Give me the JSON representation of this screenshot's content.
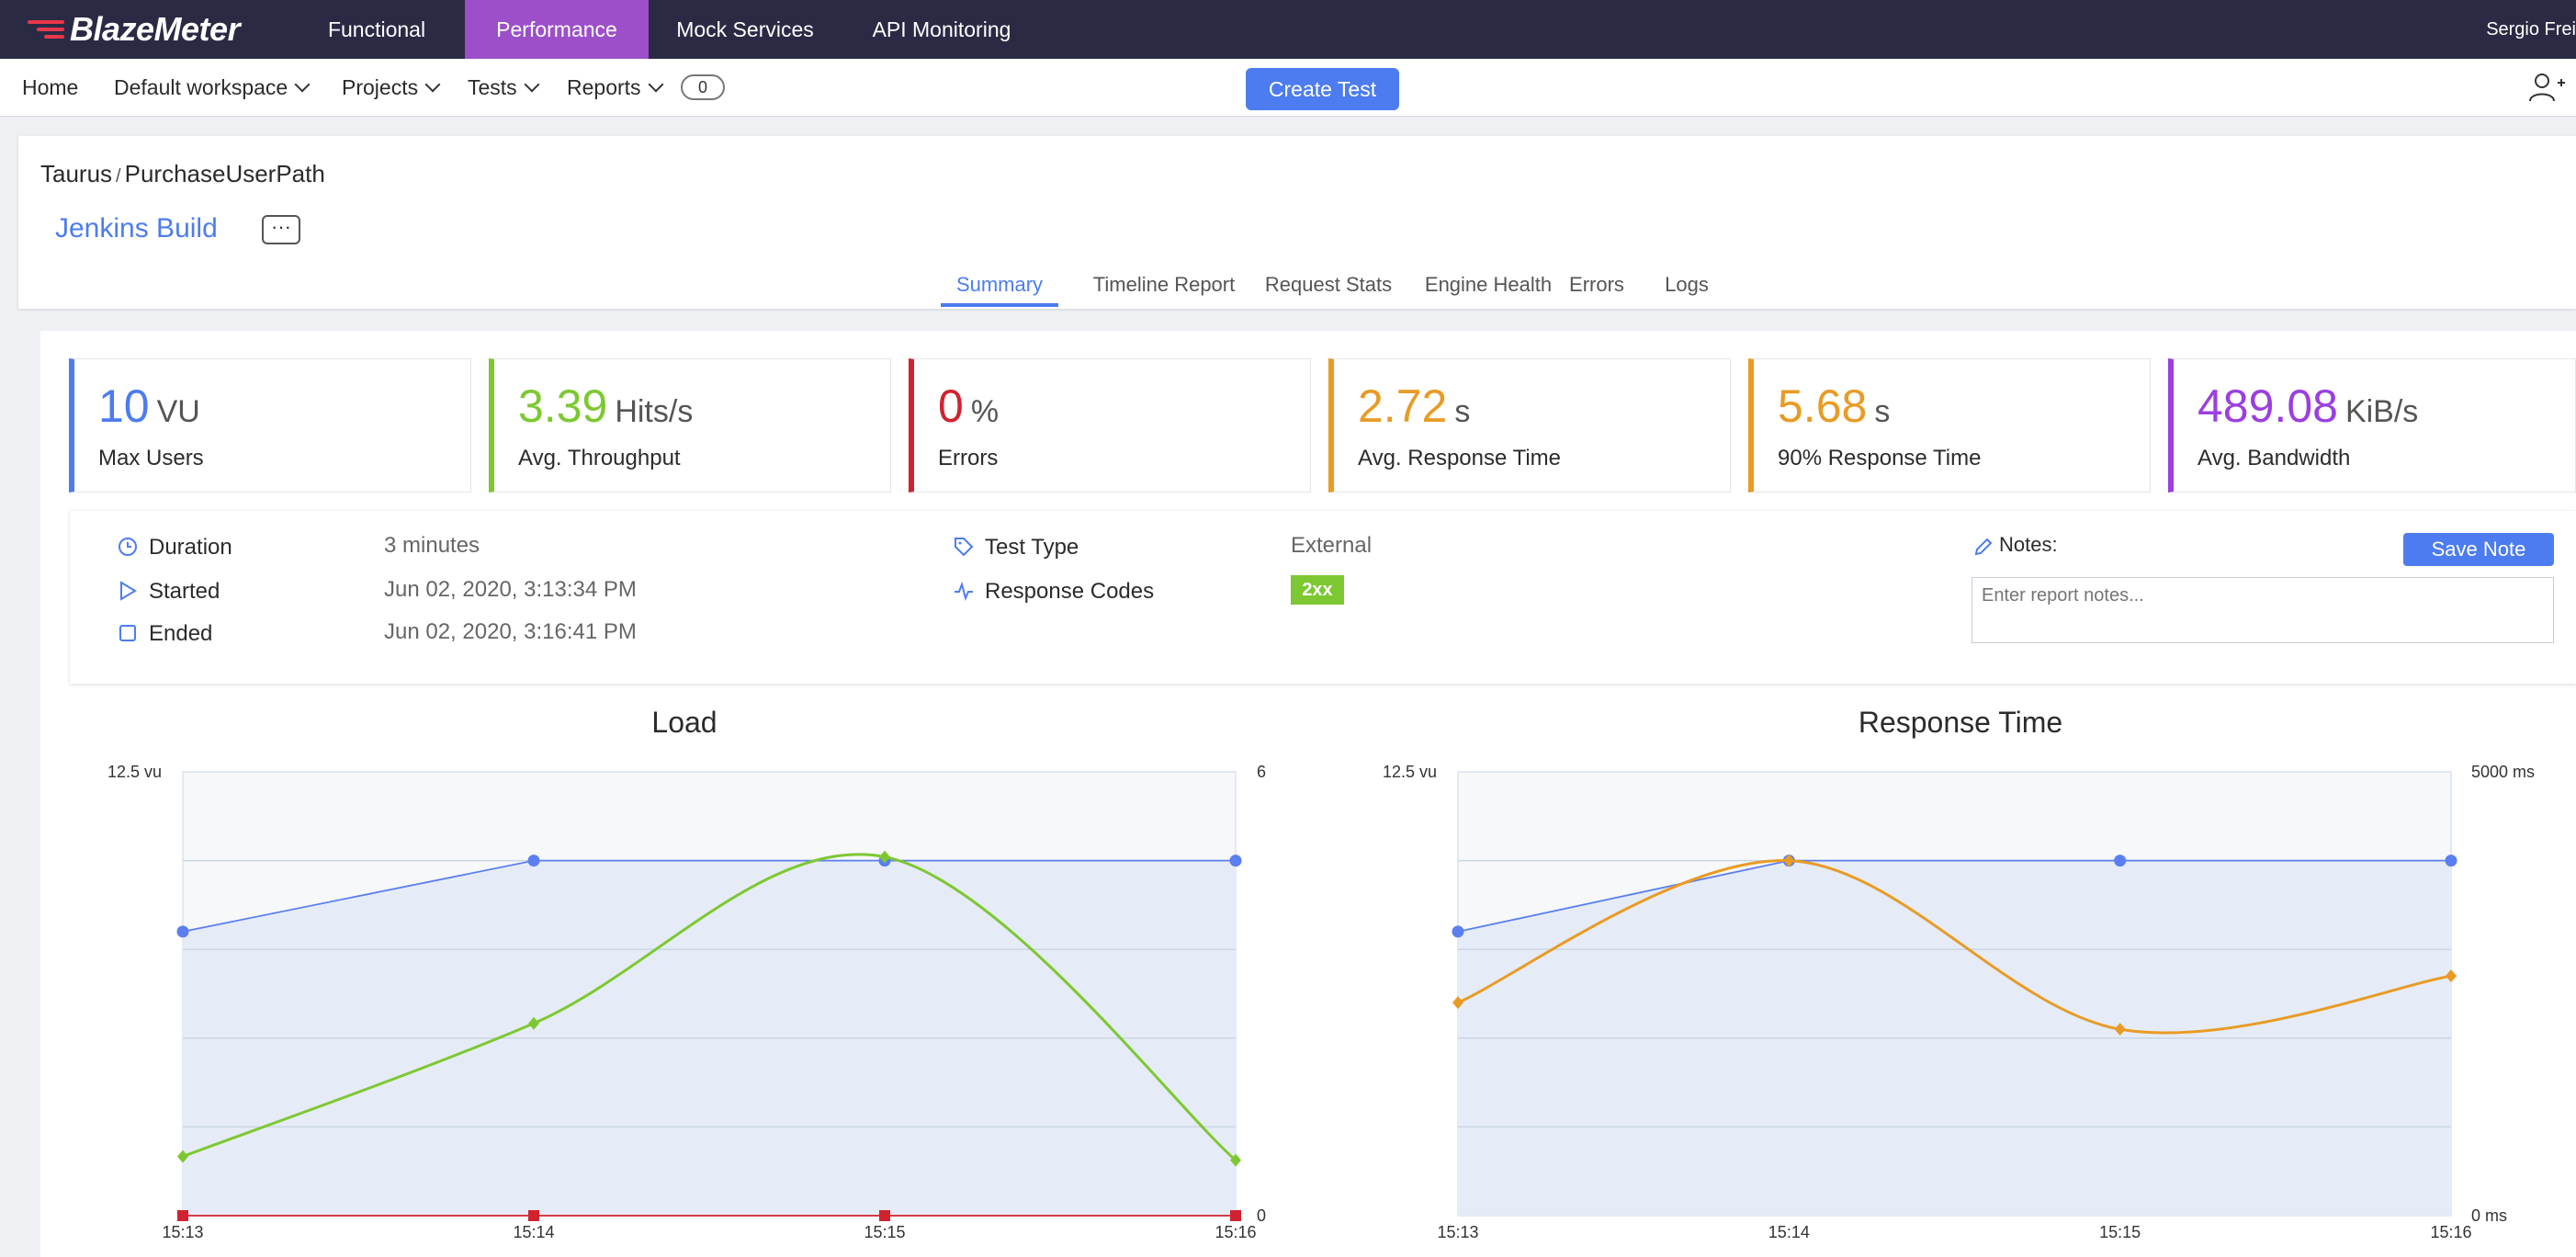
{
  "app": {
    "logo_text": "BlazeMeter",
    "top_nav": [
      "Functional",
      "Performance",
      "Mock Services",
      "API Monitoring"
    ],
    "active_top_nav": "Performance",
    "user_name": "Sergio Frei"
  },
  "sub_nav": {
    "home": "Home",
    "workspace": "Default workspace",
    "projects": "Projects",
    "tests": "Tests",
    "reports": "Reports",
    "count": "0",
    "create_test": "Create Test"
  },
  "header": {
    "breadcrumb_project": "Taurus",
    "breadcrumb_sep": "/",
    "breadcrumb_test": "PurchaseUserPath",
    "title": "Jenkins Build",
    "more": "···",
    "tabs": [
      "Summary",
      "Timeline Report",
      "Request Stats",
      "Engine Health",
      "Errors",
      "Logs"
    ],
    "active_tab": "Summary"
  },
  "kpis": [
    {
      "value": "10",
      "unit": "VU",
      "label": "Max Users",
      "color": "#4c7cf0"
    },
    {
      "value": "3.39",
      "unit": "Hits/s",
      "label": "Avg. Throughput",
      "color": "#7dc832"
    },
    {
      "value": "0",
      "unit": "%",
      "label": "Errors",
      "color": "#d0232f"
    },
    {
      "value": "2.72",
      "unit": "s",
      "label": "Avg. Response Time",
      "color": "#e89b25"
    },
    {
      "value": "5.68",
      "unit": "s",
      "label": "90% Response Time",
      "color": "#e89b25"
    },
    {
      "value": "489.08",
      "unit": "KiB/s",
      "label": "Avg. Bandwidth",
      "color": "#9b3fe0"
    }
  ],
  "details": {
    "duration_label": "Duration",
    "duration_value": "3 minutes",
    "started_label": "Started",
    "started_value": "Jun 02, 2020, 3:13:34 PM",
    "ended_label": "Ended",
    "ended_value": "Jun 02, 2020, 3:16:41 PM",
    "test_type_label": "Test Type",
    "test_type_value": "External",
    "response_codes_label": "Response Codes",
    "response_code_badge": "2xx",
    "notes_label": "Notes:",
    "save_note": "Save Note",
    "notes_placeholder": "Enter report notes..."
  },
  "chart_data": [
    {
      "type": "line",
      "title": "Load",
      "x": [
        "15:13",
        "15:14",
        "15:15",
        "15:16"
      ],
      "y_left_label_top": "12.5 vu",
      "y_right_label_top": "6",
      "y_right_label_bottom": "0",
      "ylim_left": [
        0,
        12.5
      ],
      "ylim_right": [
        0,
        6
      ],
      "grid": true,
      "series": [
        {
          "axis": "left",
          "color": "#5b7ff0",
          "values": [
            8,
            10,
            10,
            10
          ]
        },
        {
          "axis": "right",
          "color": "#7dc832",
          "values": [
            0.8,
            2.6,
            4.85,
            0.75
          ],
          "smooth": true
        },
        {
          "axis": "right",
          "color": "#d0232f",
          "values": [
            0,
            0,
            0,
            0
          ]
        }
      ]
    },
    {
      "type": "line",
      "title": "Response Time",
      "x": [
        "15:13",
        "15:14",
        "15:15",
        "15:16"
      ],
      "y_left_label_top": "12.5 vu",
      "y_right_label_top": "5000 ms",
      "y_right_label_bottom": "0 ms",
      "ylim_left": [
        0,
        12.5
      ],
      "ylim_right": [
        0,
        5000
      ],
      "grid": true,
      "series": [
        {
          "axis": "left",
          "color": "#5b7ff0",
          "values": [
            8,
            10,
            10,
            10
          ]
        },
        {
          "axis": "right",
          "color": "#e89b25",
          "values": [
            2400,
            4000,
            2100,
            2700
          ],
          "smooth": true
        }
      ]
    }
  ]
}
